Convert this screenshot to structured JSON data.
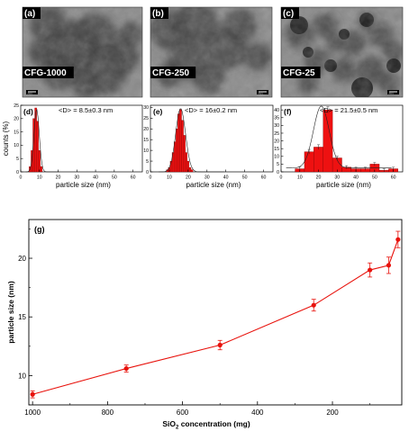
{
  "tem_panels": [
    {
      "letter": "(a)",
      "label": "CFG-1000",
      "scalebar": "20nm"
    },
    {
      "letter": "(b)",
      "label": "CFG-250",
      "scalebar": "20nm"
    },
    {
      "letter": "(c)",
      "label": "CFG-25",
      "scalebar": "20nm"
    }
  ],
  "colors": {
    "series": "#e8120c",
    "bar": "#ee1111",
    "fit": "#222222",
    "tem_bg": "#8a8a8a"
  },
  "chart_data": [
    {
      "type": "bar",
      "panel": "(d)",
      "annotation": "<D> = 8.5±0.3 nm",
      "xlabel": "particle size (nm)",
      "ylabel": "counts (%)",
      "xlim": [
        0,
        65
      ],
      "ylim": [
        0,
        25
      ],
      "xticks": [
        0,
        10,
        20,
        30,
        40,
        50,
        60
      ],
      "yticks": [
        0,
        5,
        10,
        15,
        20,
        25
      ],
      "x": [
        5,
        6,
        7,
        8,
        9,
        10,
        11
      ],
      "values": [
        2,
        8,
        20,
        24,
        19,
        8,
        2
      ],
      "bin_width": 1,
      "fit": {
        "type": "gaussian",
        "center": 8.5,
        "sigma": 1.4,
        "peak": 23.5
      }
    },
    {
      "type": "bar",
      "panel": "(e)",
      "annotation": "<D> = 16±0.2 nm",
      "xlabel": "particle size (nm)",
      "ylabel": "",
      "xlim": [
        0,
        65
      ],
      "ylim": [
        0,
        31
      ],
      "xticks": [
        0,
        10,
        20,
        30,
        40,
        50,
        60
      ],
      "yticks": [
        0,
        5,
        10,
        15,
        20,
        25,
        30
      ],
      "x": [
        9,
        10,
        11,
        12,
        13,
        14,
        15,
        16,
        17,
        18,
        19,
        20,
        21,
        22
      ],
      "values": [
        1,
        2,
        5,
        9,
        14,
        20,
        27,
        29,
        24,
        17,
        9,
        5,
        2,
        1
      ],
      "bin_width": 1,
      "fit": {
        "type": "gaussian",
        "center": 16,
        "sigma": 2.6,
        "peak": 29.5
      }
    },
    {
      "type": "bar",
      "panel": "(f)",
      "annotation": "<D> = 21.5±0.5 nm",
      "xlabel": "particle size (nm)",
      "ylabel": "",
      "xlim": [
        0,
        65
      ],
      "ylim": [
        0,
        43
      ],
      "xticks": [
        0,
        10,
        20,
        30,
        40,
        50,
        60
      ],
      "yticks": [
        0,
        5,
        10,
        15,
        20,
        25,
        30,
        35,
        40
      ],
      "x": [
        10,
        15,
        20,
        25,
        30,
        35,
        40,
        45,
        50,
        55,
        60
      ],
      "values": [
        2,
        13,
        16,
        40,
        9,
        3,
        2,
        2,
        5,
        1,
        2
      ],
      "err": [
        1,
        1.5,
        1.5,
        2,
        1,
        1,
        1,
        1,
        1,
        1,
        1
      ],
      "bin_width": 5,
      "fit": {
        "type": "gaussian",
        "center": 21.5,
        "sigma": 4.2,
        "peak": 40,
        "baseline": 2.5
      }
    },
    {
      "type": "line",
      "panel": "(g)",
      "xlabel": "SiO2 concentration (mg)",
      "xlabel_main": "SiO",
      "xlabel_sub": "2",
      "xlabel_rest": " concentration (mg)",
      "ylabel": "particle size (nm)",
      "xlim": [
        1010,
        15
      ],
      "ylim": [
        7.5,
        23.3
      ],
      "xticks": [
        1000,
        800,
        600,
        400,
        200
      ],
      "yticks": [
        10,
        15,
        20
      ],
      "x": [
        1000,
        750,
        500,
        250,
        100,
        50,
        25
      ],
      "y": [
        8.4,
        10.6,
        12.6,
        16.0,
        19.0,
        19.4,
        21.6
      ],
      "err": [
        0.3,
        0.3,
        0.4,
        0.5,
        0.6,
        0.7,
        0.7
      ]
    }
  ]
}
